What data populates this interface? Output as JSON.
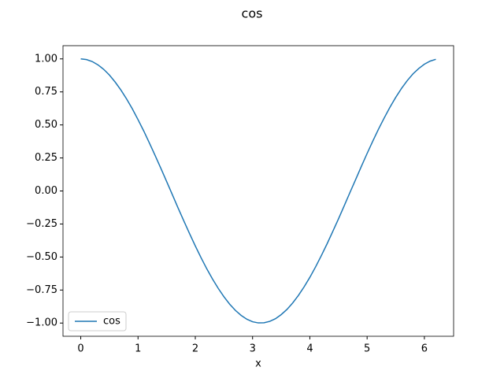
{
  "chart_data": {
    "type": "line",
    "title": "cos",
    "xlabel": "x",
    "x": [
      0,
      0.1,
      0.2,
      0.3,
      0.4,
      0.5,
      0.6,
      0.7,
      0.8,
      0.9,
      1.0,
      1.1,
      1.2,
      1.3,
      1.4,
      1.5,
      1.6,
      1.7,
      1.8,
      1.9,
      2.0,
      2.1,
      2.2,
      2.3,
      2.4,
      2.5,
      2.6,
      2.7,
      2.8,
      2.9,
      3.0,
      3.1,
      3.2,
      3.3,
      3.4,
      3.5,
      3.6,
      3.7,
      3.8,
      3.9,
      4.0,
      4.1,
      4.2,
      4.3,
      4.4,
      4.5,
      4.6,
      4.7,
      4.8,
      4.9,
      5.0,
      5.1,
      5.2,
      5.3,
      5.4,
      5.5,
      5.6,
      5.7,
      5.8,
      5.9,
      6.0,
      6.1,
      6.2
    ],
    "series": [
      {
        "name": "cos",
        "color": "#1f77b4",
        "values": [
          1.0,
          0.995,
          0.98,
          0.955,
          0.921,
          0.878,
          0.825,
          0.765,
          0.697,
          0.622,
          0.54,
          0.454,
          0.362,
          0.267,
          0.17,
          0.071,
          -0.029,
          -0.129,
          -0.227,
          -0.323,
          -0.416,
          -0.505,
          -0.589,
          -0.666,
          -0.737,
          -0.801,
          -0.857,
          -0.904,
          -0.942,
          -0.971,
          -0.99,
          -0.999,
          -0.998,
          -0.987,
          -0.967,
          -0.936,
          -0.897,
          -0.848,
          -0.791,
          -0.726,
          -0.654,
          -0.575,
          -0.49,
          -0.401,
          -0.307,
          -0.211,
          -0.112,
          -0.012,
          0.087,
          0.187,
          0.284,
          0.378,
          0.469,
          0.554,
          0.635,
          0.709,
          0.776,
          0.835,
          0.886,
          0.927,
          0.96,
          0.983,
          0.997
        ]
      }
    ],
    "xlim": [
      -0.31,
      6.51
    ],
    "ylim": [
      -1.1,
      1.1
    ],
    "xticks": [
      0,
      1,
      2,
      3,
      4,
      5,
      6
    ],
    "yticks": [
      {
        "value": 1.0,
        "label": "1.00"
      },
      {
        "value": 0.75,
        "label": "0.75"
      },
      {
        "value": 0.5,
        "label": "0.50"
      },
      {
        "value": 0.25,
        "label": "0.25"
      },
      {
        "value": 0.0,
        "label": "0.00"
      },
      {
        "value": -0.25,
        "label": "−0.25"
      },
      {
        "value": -0.5,
        "label": "−0.50"
      },
      {
        "value": -0.75,
        "label": "−0.75"
      },
      {
        "value": -1.0,
        "label": "−1.00"
      }
    ],
    "legend": "lower left",
    "grid": false
  }
}
